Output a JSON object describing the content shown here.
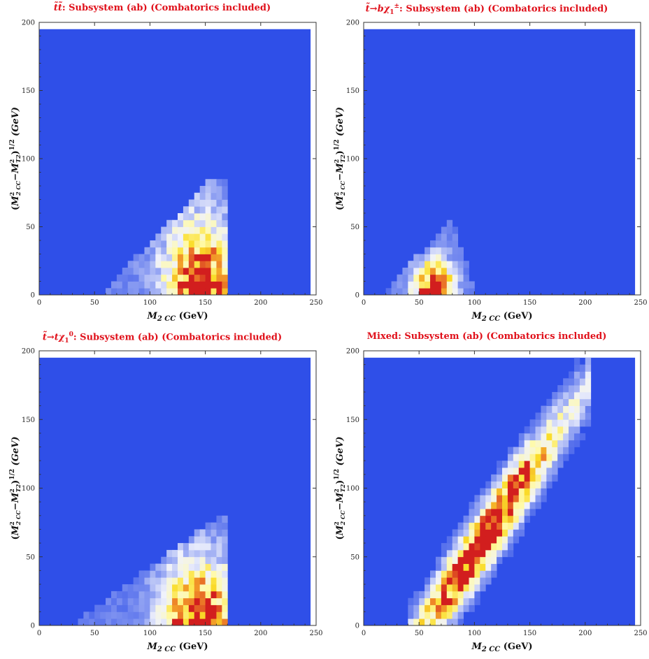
{
  "chart_data": [
    {
      "type": "heatmap",
      "title": "t̃t̃*: Subsystem (ab) (Combatorics included)",
      "xlabel": "M2 CC (GeV)",
      "ylabel": "(M²₂CC − M²T2)^1/2 (GeV)",
      "xlim": [
        0,
        250
      ],
      "ylim": [
        0,
        200
      ],
      "xticks": [
        "0",
        "50",
        "100",
        "150",
        "200",
        "250"
      ],
      "yticks": [
        "0",
        "50",
        "100",
        "150",
        "200"
      ],
      "grid": false,
      "background_color": "#2f4fe8",
      "region": {
        "x_edge_upper": 172,
        "y_peak_max": 85,
        "hot_spot": [
          147,
          17
        ]
      }
    },
    {
      "type": "heatmap",
      "title": "t̃ → b χ̃±1: Subsystem (ab) (Combatorics included)",
      "xlabel": "M2 CC (GeV)",
      "ylabel": "(M²₂CC − M²T2)^1/2 (GeV)",
      "xlim": [
        0,
        250
      ],
      "ylim": [
        0,
        200
      ],
      "xticks": [
        "0",
        "50",
        "100",
        "150",
        "200",
        "250"
      ],
      "yticks": [
        "0",
        "50",
        "100",
        "150",
        "200"
      ],
      "grid": false,
      "background_color": "#2f4fe8",
      "region": {
        "x_edge_upper": 100,
        "y_peak_max": 55,
        "hot_spot": [
          64,
          12
        ]
      }
    },
    {
      "type": "heatmap",
      "title": "t̃ → t χ̃01: Subsystem (ab) (Combatorics included)",
      "xlabel": "M2 CC (GeV)",
      "ylabel": "(M²₂CC − M²T2)^1/2 (GeV)",
      "xlim": [
        0,
        250
      ],
      "ylim": [
        0,
        200
      ],
      "xticks": [
        "0",
        "50",
        "100",
        "150",
        "200",
        "250"
      ],
      "yticks": [
        "0",
        "50",
        "100",
        "150",
        "200"
      ],
      "grid": false,
      "background_color": "#2f4fe8",
      "region": {
        "x_edge_upper": 172,
        "y_peak_max": 82,
        "hot_spot": [
          145,
          3
        ]
      }
    },
    {
      "type": "heatmap",
      "title": "Mixed: Subsystem (ab) (Combatorics included)",
      "xlabel": "M2 CC (GeV)",
      "ylabel": "(M²₂CC − M²T2)^1/2 (GeV)",
      "xlim": [
        0,
        250
      ],
      "ylim": [
        0,
        200
      ],
      "xticks": [
        "0",
        "50",
        "100",
        "150",
        "200",
        "250"
      ],
      "yticks": [
        "0",
        "50",
        "100",
        "150",
        "200"
      ],
      "grid": false,
      "background_color": "#2f4fe8",
      "region": {
        "band_from": [
          60,
          0
        ],
        "band_to": [
          190,
          160
        ],
        "hot_spot": [
          130,
          75
        ]
      }
    }
  ]
}
